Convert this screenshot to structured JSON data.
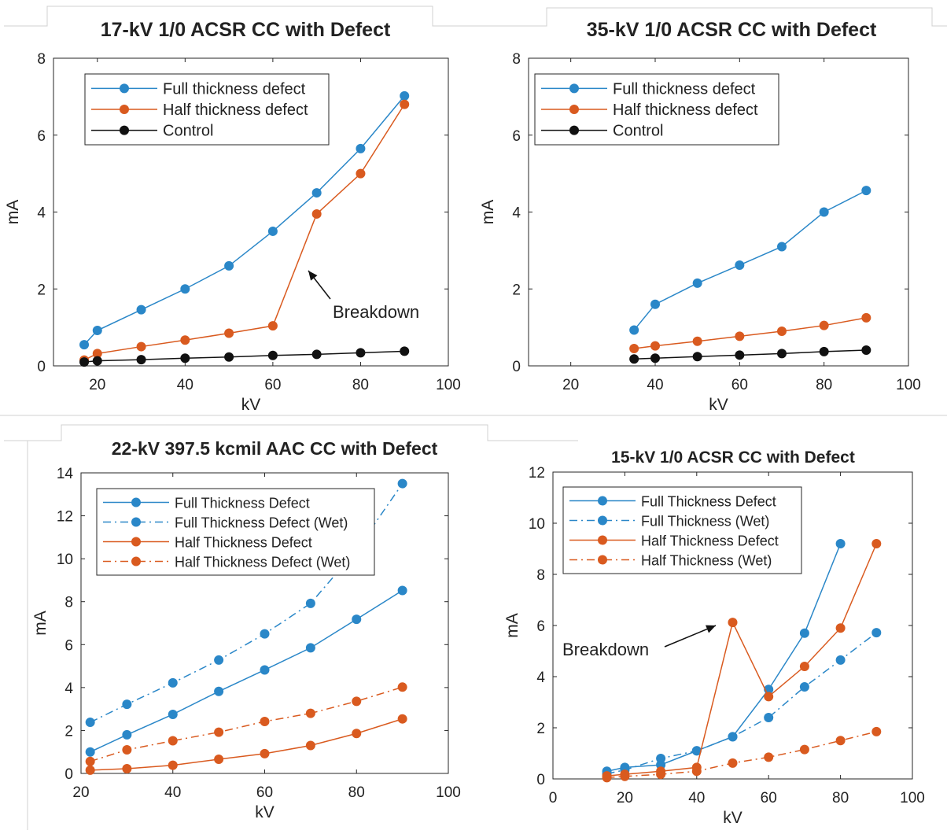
{
  "colors": {
    "blue": "#2a87c8",
    "orange": "#d95a1f",
    "black": "#111111",
    "axis": "#262626"
  },
  "chart_data": [
    {
      "type": "line",
      "title": "17-kV 1/0 ACSR CC with Defect",
      "xlabel": "kV",
      "ylabel": "mA",
      "xlim": [
        10,
        100
      ],
      "ylim": [
        0,
        8
      ],
      "xticks": [
        20,
        40,
        60,
        80,
        100
      ],
      "yticks": [
        0,
        2,
        4,
        6,
        8
      ],
      "grid": false,
      "legend_position": "top-left",
      "annotation": {
        "text": "Breakdown",
        "x": 68,
        "y": 2.55
      },
      "series": [
        {
          "name": "Full thickness defect",
          "color": "#2a87c8",
          "dash": "solid",
          "x": [
            17,
            20,
            30,
            40,
            50,
            60,
            70,
            80,
            90
          ],
          "y": [
            0.55,
            0.92,
            1.46,
            2.0,
            2.6,
            3.5,
            4.5,
            5.65,
            7.02
          ]
        },
        {
          "name": "Half thickness defect",
          "color": "#d95a1f",
          "dash": "solid",
          "x": [
            17,
            20,
            30,
            40,
            50,
            60,
            70,
            80,
            90
          ],
          "y": [
            0.15,
            0.32,
            0.5,
            0.67,
            0.85,
            1.04,
            3.95,
            5.0,
            6.8
          ]
        },
        {
          "name": "Control",
          "color": "#111111",
          "dash": "solid",
          "x": [
            17,
            20,
            30,
            40,
            50,
            60,
            70,
            80,
            90
          ],
          "y": [
            0.1,
            0.13,
            0.16,
            0.2,
            0.23,
            0.27,
            0.3,
            0.34,
            0.38
          ]
        }
      ]
    },
    {
      "type": "line",
      "title": "35-kV 1/0 ACSR CC with Defect",
      "xlabel": "kV",
      "ylabel": "mA",
      "xlim": [
        10,
        100
      ],
      "ylim": [
        0,
        8
      ],
      "xticks": [
        20,
        40,
        60,
        80,
        100
      ],
      "yticks": [
        0,
        2,
        4,
        6,
        8
      ],
      "grid": false,
      "legend_position": "top-left",
      "series": [
        {
          "name": "Full thickness defect",
          "color": "#2a87c8",
          "dash": "solid",
          "x": [
            35,
            40,
            50,
            60,
            70,
            80,
            90
          ],
          "y": [
            0.93,
            1.6,
            2.15,
            2.62,
            3.1,
            4.0,
            4.56
          ]
        },
        {
          "name": "Half thickness defect",
          "color": "#d95a1f",
          "dash": "solid",
          "x": [
            35,
            40,
            50,
            60,
            70,
            80,
            90
          ],
          "y": [
            0.45,
            0.52,
            0.64,
            0.77,
            0.9,
            1.05,
            1.25
          ]
        },
        {
          "name": "Control",
          "color": "#111111",
          "dash": "solid",
          "x": [
            35,
            40,
            50,
            60,
            70,
            80,
            90
          ],
          "y": [
            0.18,
            0.2,
            0.24,
            0.28,
            0.32,
            0.37,
            0.41
          ]
        }
      ]
    },
    {
      "type": "line",
      "title": "22-kV 397.5 kcmil AAC CC with Defect",
      "xlabel": "kV",
      "ylabel": "mA",
      "xlim": [
        20,
        100
      ],
      "ylim": [
        0,
        14
      ],
      "xticks": [
        20,
        40,
        60,
        80,
        100
      ],
      "yticks": [
        0,
        2,
        4,
        6,
        8,
        10,
        12,
        14
      ],
      "grid": false,
      "legend_position": "top-left",
      "series": [
        {
          "name": "Full Thickness Defect",
          "color": "#2a87c8",
          "dash": "solid",
          "x": [
            22,
            30,
            40,
            50,
            60,
            70,
            80,
            90
          ],
          "y": [
            1.0,
            1.8,
            2.75,
            3.82,
            4.82,
            5.85,
            7.18,
            8.52
          ]
        },
        {
          "name": "Full Thickness Defect (Wet)",
          "color": "#2a87c8",
          "dash": "dashdot",
          "x": [
            22,
            30,
            40,
            50,
            60,
            70,
            80,
            90
          ],
          "y": [
            2.38,
            3.22,
            4.22,
            5.28,
            6.5,
            7.92,
            10.4,
            13.5
          ]
        },
        {
          "name": "Half Thickness Defect",
          "color": "#d95a1f",
          "dash": "solid",
          "x": [
            22,
            30,
            40,
            50,
            60,
            70,
            80,
            90
          ],
          "y": [
            0.15,
            0.22,
            0.38,
            0.66,
            0.92,
            1.3,
            1.86,
            2.54
          ]
        },
        {
          "name": "Half Thickness Defect (Wet)",
          "color": "#d95a1f",
          "dash": "dashdot",
          "x": [
            22,
            30,
            40,
            50,
            60,
            70,
            80,
            90
          ],
          "y": [
            0.56,
            1.1,
            1.52,
            1.92,
            2.42,
            2.8,
            3.36,
            4.02
          ]
        }
      ]
    },
    {
      "type": "line",
      "title": "15-kV 1/0 ACSR CC with Defect",
      "xlabel": "kV",
      "ylabel": "mA",
      "xlim": [
        0,
        100
      ],
      "ylim": [
        0,
        12
      ],
      "xticks": [
        0,
        20,
        40,
        60,
        80,
        100
      ],
      "yticks": [
        0,
        2,
        4,
        6,
        8,
        10,
        12
      ],
      "grid": false,
      "legend_position": "top-left",
      "annotation": {
        "text": "Breakdown",
        "x": 15,
        "y": 5.1
      },
      "series": [
        {
          "name": "Full Thickness Defect",
          "color": "#2a87c8",
          "dash": "solid",
          "x": [
            15,
            20,
            30,
            40,
            50,
            60,
            70,
            80
          ],
          "y": [
            0.3,
            0.45,
            0.55,
            1.1,
            1.65,
            3.5,
            5.7,
            9.2
          ]
        },
        {
          "name": "Full Thickness (Wet)",
          "color": "#2a87c8",
          "dash": "dashdot",
          "x": [
            15,
            20,
            30,
            40,
            50,
            60,
            70,
            80,
            90
          ],
          "y": [
            0.2,
            0.35,
            0.8,
            1.1,
            1.65,
            2.4,
            3.6,
            4.65,
            5.72
          ]
        },
        {
          "name": "Half Thickness Defect",
          "color": "#d95a1f",
          "dash": "solid",
          "x": [
            15,
            20,
            30,
            40,
            50,
            60,
            70,
            80,
            90
          ],
          "y": [
            0.12,
            0.18,
            0.3,
            0.45,
            6.12,
            3.22,
            4.4,
            5.9,
            9.2
          ]
        },
        {
          "name": "Half Thickness (Wet)",
          "color": "#d95a1f",
          "dash": "dashdot",
          "x": [
            15,
            20,
            30,
            40,
            50,
            60,
            70,
            80,
            90
          ],
          "y": [
            0.05,
            0.1,
            0.18,
            0.3,
            0.62,
            0.85,
            1.15,
            1.5,
            1.85
          ]
        }
      ]
    }
  ]
}
